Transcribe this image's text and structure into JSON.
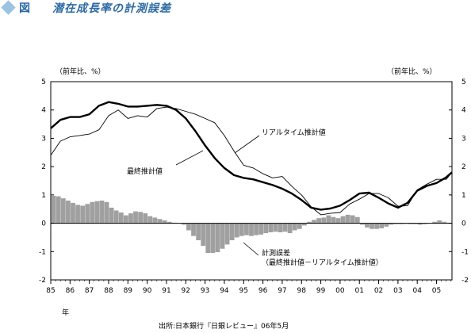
{
  "header": {
    "figure_label": "図",
    "title": "潜在成長率の計測誤差"
  },
  "chart_data": {
    "type": "line",
    "y_unit_left": "（前年比、%）",
    "y_unit_right": "（前年比、%）",
    "ylim": [
      -2,
      5
    ],
    "yticks": [
      -2,
      -1,
      0,
      1,
      2,
      3,
      4,
      5
    ],
    "xlim": [
      1985,
      2005.8
    ],
    "x_tick_labels": [
      "85",
      "86",
      "87",
      "88",
      "89",
      "90",
      "91",
      "92",
      "93",
      "94",
      "95",
      "96",
      "97",
      "98",
      "99",
      "00",
      "01",
      "02",
      "03",
      "04",
      "05"
    ],
    "x_tick_years": [
      1985,
      1986,
      1987,
      1988,
      1989,
      1990,
      1991,
      1992,
      1993,
      1994,
      1995,
      1996,
      1997,
      1998,
      1999,
      2000,
      2001,
      2002,
      2003,
      2004,
      2005
    ],
    "x_unit": "年",
    "grid": false,
    "source": "出所:日本銀行『日銀レビュー』06年5月",
    "series": [
      {
        "name": "最終推計値",
        "style": "line-thick",
        "color": "#000000",
        "x": [
          1985.0,
          1985.5,
          1986.0,
          1986.5,
          1987.0,
          1987.5,
          1988.0,
          1988.5,
          1989.0,
          1989.5,
          1990.0,
          1990.5,
          1991.0,
          1991.5,
          1992.0,
          1992.5,
          1993.0,
          1993.5,
          1994.0,
          1994.5,
          1995.0,
          1995.5,
          1996.0,
          1996.5,
          1997.0,
          1997.5,
          1998.0,
          1998.5,
          1999.0,
          1999.5,
          2000.0,
          2000.5,
          2001.0,
          2001.5,
          2002.0,
          2002.5,
          2003.0,
          2003.5,
          2004.0,
          2004.5,
          2005.0,
          2005.5,
          2005.8
        ],
        "values": [
          3.35,
          3.65,
          3.75,
          3.75,
          3.85,
          4.15,
          4.28,
          4.22,
          4.12,
          4.12,
          4.15,
          4.18,
          4.15,
          4.0,
          3.7,
          3.25,
          2.75,
          2.3,
          1.95,
          1.7,
          1.6,
          1.55,
          1.45,
          1.35,
          1.22,
          1.05,
          0.82,
          0.55,
          0.48,
          0.52,
          0.62,
          0.82,
          1.05,
          1.08,
          0.9,
          0.7,
          0.55,
          0.72,
          1.15,
          1.32,
          1.42,
          1.62,
          1.8
        ]
      },
      {
        "name": "リアルタイム推計値",
        "style": "line-thin",
        "color": "#000000",
        "x": [
          1985.0,
          1985.5,
          1986.0,
          1986.5,
          1987.0,
          1987.5,
          1988.0,
          1988.5,
          1989.0,
          1989.5,
          1990.0,
          1990.5,
          1991.0,
          1991.5,
          1992.0,
          1992.5,
          1993.0,
          1993.5,
          1994.0,
          1994.5,
          1995.0,
          1995.5,
          1996.0,
          1996.5,
          1997.0,
          1997.5,
          1998.0,
          1998.5,
          1999.0,
          1999.5,
          2000.0,
          2000.5,
          2001.0,
          2001.5,
          2002.0,
          2002.5,
          2003.0,
          2003.5,
          2004.0,
          2004.5,
          2005.0,
          2005.5,
          2005.8
        ],
        "values": [
          2.4,
          2.9,
          3.05,
          3.1,
          3.15,
          3.3,
          3.8,
          4.0,
          3.7,
          3.8,
          3.75,
          4.05,
          4.1,
          4.05,
          3.95,
          3.85,
          3.7,
          3.55,
          3.1,
          2.55,
          2.05,
          1.95,
          1.75,
          1.6,
          1.65,
          1.3,
          1.0,
          0.58,
          0.3,
          0.35,
          0.38,
          0.68,
          0.85,
          1.05,
          1.05,
          0.9,
          0.6,
          0.62,
          1.18,
          1.38,
          1.55,
          1.55,
          1.8
        ]
      }
    ],
    "bars": {
      "name": "計測誤差",
      "color": "#a0a0a0",
      "x": [
        1985.15,
        1985.4,
        1985.65,
        1985.9,
        1986.15,
        1986.4,
        1986.65,
        1986.9,
        1987.15,
        1987.4,
        1987.65,
        1987.9,
        1988.15,
        1988.4,
        1988.65,
        1988.9,
        1989.15,
        1989.4,
        1989.65,
        1989.9,
        1990.15,
        1990.4,
        1990.65,
        1990.9,
        1991.15,
        1991.4,
        1991.65,
        1991.9,
        1992.15,
        1992.4,
        1992.65,
        1992.9,
        1993.15,
        1993.4,
        1993.65,
        1993.9,
        1994.15,
        1994.4,
        1994.65,
        1994.9,
        1995.15,
        1995.4,
        1995.65,
        1995.9,
        1996.15,
        1996.4,
        1996.65,
        1996.9,
        1997.15,
        1997.4,
        1997.65,
        1997.9,
        1998.15,
        1998.4,
        1998.65,
        1998.9,
        1999.15,
        1999.4,
        1999.65,
        1999.9,
        2000.15,
        2000.4,
        2000.65,
        2000.9,
        2001.15,
        2001.4,
        2001.65,
        2001.9,
        2002.15,
        2002.4,
        2002.65,
        2002.9,
        2003.15,
        2003.4,
        2003.65,
        2003.9,
        2004.15,
        2004.4,
        2004.65,
        2004.9,
        2005.15,
        2005.4,
        2005.65
      ],
      "values": [
        0.97,
        0.95,
        0.88,
        0.8,
        0.72,
        0.65,
        0.62,
        0.68,
        0.75,
        0.78,
        0.8,
        0.75,
        0.55,
        0.45,
        0.38,
        0.28,
        0.35,
        0.42,
        0.4,
        0.35,
        0.25,
        0.2,
        0.15,
        0.1,
        0.05,
        0.02,
        0.0,
        -0.05,
        -0.25,
        -0.45,
        -0.6,
        -0.8,
        -1.05,
        -1.05,
        -1.02,
        -0.9,
        -0.75,
        -0.6,
        -0.5,
        -0.45,
        -0.42,
        -0.45,
        -0.42,
        -0.4,
        -0.35,
        -0.32,
        -0.3,
        -0.32,
        -0.3,
        -0.35,
        -0.25,
        -0.2,
        -0.08,
        0.05,
        0.12,
        0.18,
        0.2,
        0.28,
        0.22,
        0.18,
        0.25,
        0.3,
        0.28,
        0.22,
        -0.05,
        -0.15,
        -0.2,
        -0.2,
        -0.18,
        -0.12,
        -0.05,
        -0.03,
        -0.03,
        -0.02,
        -0.03,
        -0.03,
        -0.05,
        -0.03,
        0.0,
        0.05,
        0.1,
        0.05,
        0.02
      ]
    },
    "annotations": {
      "realtime_label": "リアルタイム推計値",
      "final_label": "最終推計値",
      "error_label_1": "計測誤差",
      "error_label_2": "（最終推計値－リアルタイム推計値）"
    }
  }
}
